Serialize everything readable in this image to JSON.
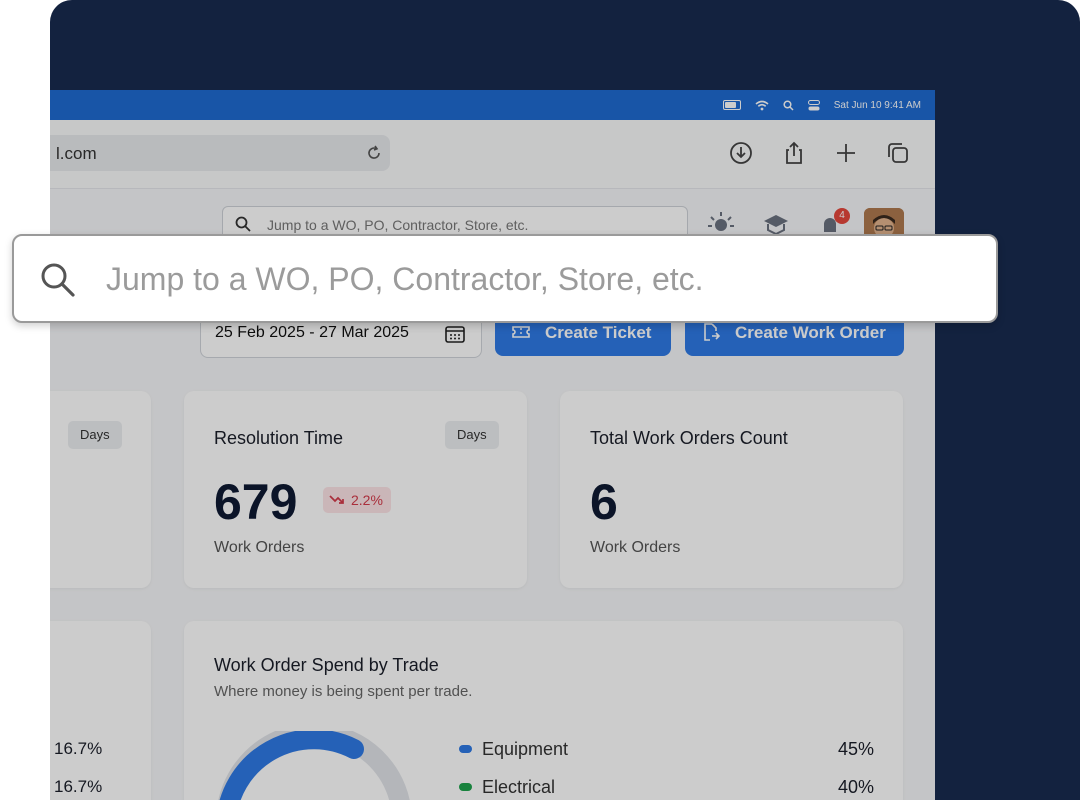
{
  "menubar": {
    "datetime": "Sat Jun 10  9:41 AM"
  },
  "browser": {
    "url": "l.com"
  },
  "search": {
    "placeholder": "Jump to a WO, PO, Contractor, Store, etc."
  },
  "notifications": {
    "count": "4"
  },
  "toolbar": {
    "date_range": "25 Feb 2025 - 27 Mar 2025",
    "create_ticket_label": "Create Ticket",
    "create_work_order_label": "Create Work Order"
  },
  "cards": {
    "left_partial": {
      "days_label": "Days"
    },
    "resolution_time": {
      "title": "Resolution Time",
      "days_label": "Days",
      "value": "679",
      "trend": "2.2%",
      "trend_direction": "down",
      "subtitle": "Work Orders"
    },
    "total_work_orders": {
      "title": "Total Work Orders Count",
      "value": "6",
      "subtitle": "Work Orders"
    }
  },
  "left_bottom": {
    "percentages": [
      "16.7%",
      "16.7%"
    ]
  },
  "spend": {
    "title": "Work Order Spend by Trade",
    "subtitle": "Where money is being spent per trade.",
    "legend": [
      {
        "name": "Equipment",
        "value": "45%",
        "color": "#2f7ae5"
      },
      {
        "name": "Electrical",
        "value": "40%",
        "color": "#1ea34d"
      }
    ]
  },
  "colors": {
    "primary": "#2f7ae5",
    "menubar": "#1f6bd1",
    "background_panel": "#13223f",
    "trend_down": "#d43a4a"
  }
}
